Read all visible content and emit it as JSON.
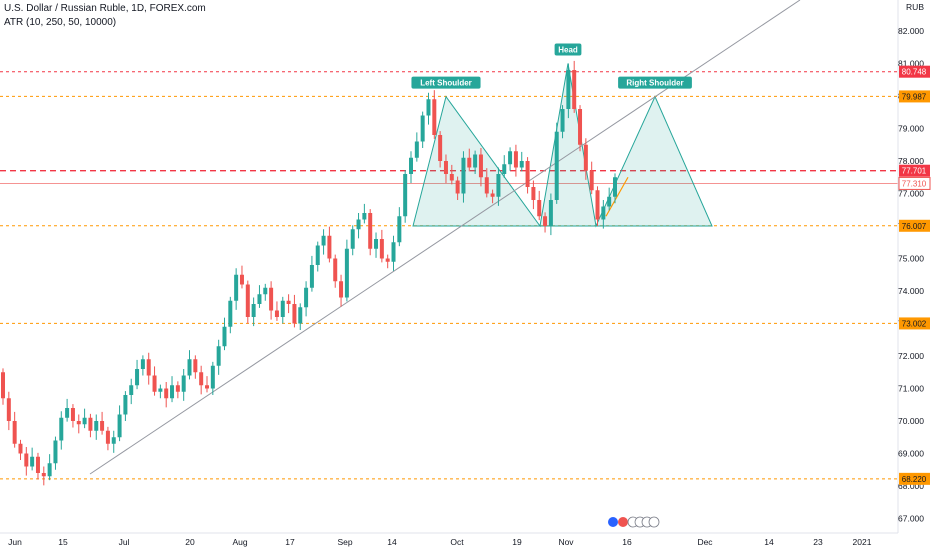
{
  "header": {
    "title": "U.S. Dollar / Russian Ruble, 1D, FOREX.com",
    "indicator": "ATR (10, 250, 50, 10000)"
  },
  "axis": {
    "currency": "RUB"
  },
  "colors": {
    "up": "#26a69a",
    "down": "#ef5350",
    "pattern": "#26a69a",
    "resistance": "#f23645",
    "support": "#ff9800",
    "trend": "#9598a1",
    "current": "#ef5350"
  },
  "chart_data": {
    "type": "candlestick",
    "title": "U.S. Dollar / Russian Ruble, 1D, FOREX.com",
    "ylim": [
      66.8,
      82.4
    ],
    "y_ticks": [
      "67.000",
      "68.000",
      "69.000",
      "70.000",
      "71.000",
      "72.000",
      "73.000",
      "74.000",
      "75.000",
      "76.000",
      "77.000",
      "78.000",
      "79.000",
      "80.000",
      "81.000",
      "82.000"
    ],
    "x_ticks": [
      "Jun",
      "15",
      "Jul",
      "20",
      "Aug",
      "17",
      "Sep",
      "14",
      "Oct",
      "19",
      "Nov",
      "16",
      "Dec",
      "14",
      "23",
      "2021"
    ],
    "levels": [
      {
        "value": "80.748",
        "style": "resistance"
      },
      {
        "value": "79.987",
        "style": "support"
      },
      {
        "value": "77.701",
        "style": "resistance"
      },
      {
        "value": "77.310",
        "style": "current"
      },
      {
        "value": "76.007",
        "style": "support"
      },
      {
        "value": "73.002",
        "style": "support"
      },
      {
        "value": "68.220",
        "style": "support"
      }
    ],
    "pattern": {
      "name": "Head and Shoulders",
      "labels": [
        "Left Shoulder",
        "Head",
        "Right Shoulder"
      ]
    },
    "closes": [
      70.7,
      70.0,
      69.3,
      69.0,
      68.6,
      68.9,
      68.4,
      68.3,
      68.7,
      69.4,
      70.1,
      70.4,
      70.0,
      69.9,
      70.1,
      69.7,
      70.0,
      69.7,
      69.3,
      69.5,
      70.2,
      70.8,
      71.1,
      71.6,
      71.9,
      71.4,
      70.9,
      71.0,
      70.7,
      71.1,
      70.9,
      71.4,
      71.9,
      71.5,
      71.1,
      71.0,
      71.7,
      72.3,
      72.9,
      73.7,
      74.5,
      74.2,
      73.2,
      73.6,
      73.9,
      74.1,
      73.4,
      73.2,
      73.7,
      73.6,
      73.0,
      73.5,
      74.1,
      74.8,
      75.4,
      75.7,
      75.0,
      74.3,
      73.8,
      75.3,
      75.9,
      76.2,
      76.4,
      75.3,
      75.6,
      75.0,
      74.9,
      75.5,
      76.3,
      77.6,
      78.1,
      78.6,
      79.4,
      79.9,
      78.8,
      78.0,
      77.6,
      77.4,
      77.0,
      78.1,
      77.8,
      78.2,
      77.5,
      77.0,
      76.9,
      77.6,
      77.9,
      78.3,
      77.8,
      78.0,
      77.2,
      76.8,
      76.3,
      76.0,
      76.8,
      78.9,
      79.6,
      80.8,
      79.6,
      78.5,
      77.7,
      77.1,
      76.2,
      76.6,
      76.9,
      77.5
    ]
  }
}
